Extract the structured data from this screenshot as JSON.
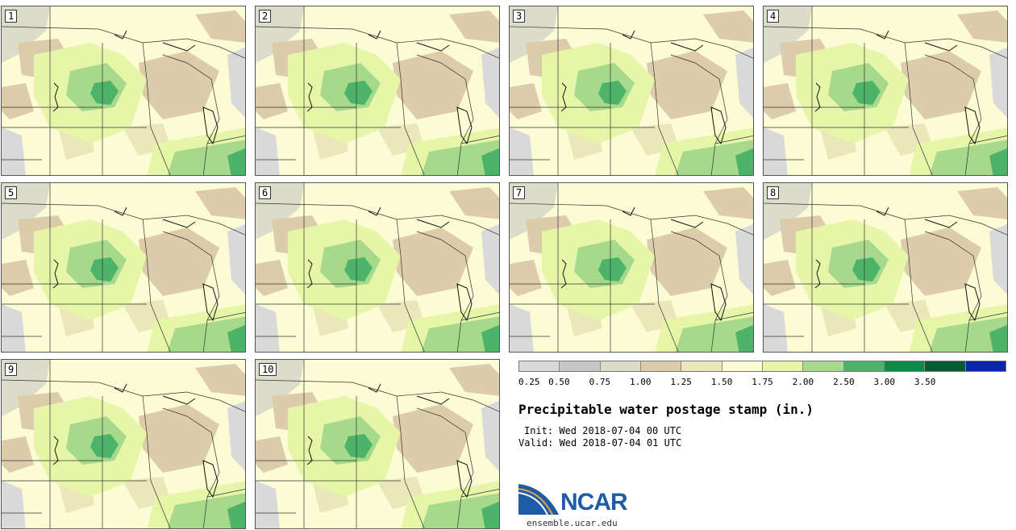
{
  "panels": [
    {
      "number": "1"
    },
    {
      "number": "2"
    },
    {
      "number": "3"
    },
    {
      "number": "4"
    },
    {
      "number": "5"
    },
    {
      "number": "6"
    },
    {
      "number": "7"
    },
    {
      "number": "8"
    },
    {
      "number": "9"
    },
    {
      "number": "10"
    }
  ],
  "colorbar": {
    "colors": [
      "#d9d9d9",
      "#c6c6c6",
      "#dcdcca",
      "#dcccaa",
      "#ece6bb",
      "#fbfbd4",
      "#e6f5a8",
      "#a6d98b",
      "#4db368",
      "#0f8a47",
      "#065c32",
      "#0a26a8"
    ],
    "labels": [
      "0.25",
      "0.50",
      "0.75",
      "1.00",
      "1.25",
      "1.50",
      "1.75",
      "2.00",
      "2.50",
      "3.00",
      "3.50"
    ]
  },
  "title": "Precipitable water postage stamp (in.)",
  "init": "Init: Wed 2018-07-04 00 UTC",
  "valid": "Valid: Wed 2018-07-04 01 UTC",
  "logo": {
    "text": "NCAR",
    "url": "ensemble.ucar.edu"
  }
}
